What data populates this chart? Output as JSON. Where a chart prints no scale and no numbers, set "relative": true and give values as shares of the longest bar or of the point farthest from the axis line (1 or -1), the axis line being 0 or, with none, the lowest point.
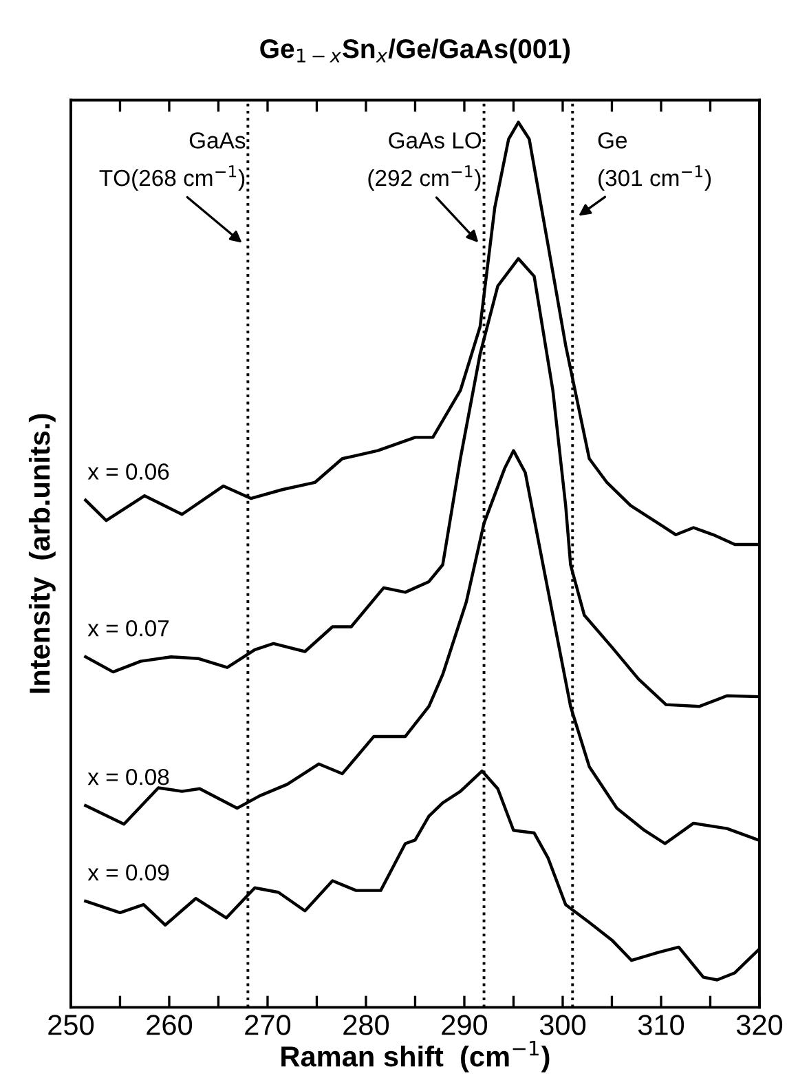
{
  "chart_data": {
    "type": "line",
    "title": "Ge$_{1−x}$Sn$_{x}$/Ge/GaAs(001)",
    "xlabel": "Raman shift  (cm$^{−1}$)",
    "ylabel": "Intensity  (arb.units.)",
    "relative": true,
    "tick_labels": "x",
    "grid": false,
    "legend": false,
    "marker": "none",
    "line_style": "solid",
    "xlim": [
      250,
      320
    ],
    "xticks": [
      250,
      {
        "value": 255,
        "label": null
      },
      260,
      {
        "value": 265,
        "label": null
      },
      270,
      {
        "value": 275,
        "label": null
      },
      280,
      {
        "value": 285,
        "label": null
      },
      290,
      {
        "value": 295,
        "label": null
      },
      300,
      {
        "value": 305,
        "label": null
      },
      310,
      {
        "value": 315,
        "label": null
      },
      320
    ],
    "ref_lines": [
      {
        "axis": "x",
        "value": 268,
        "label": "GaAs\nTO(268 cm$^{−1}$)",
        "color": "#000000",
        "line_style": "dotted"
      },
      {
        "axis": "x",
        "value": 292,
        "label": "GaAs LO\n(292 cm$^{−1}$)",
        "color": "#000000",
        "line_style": "dotted"
      },
      {
        "axis": "x",
        "value": 301,
        "label": "Ge\n(301 cm$^{−1}$)",
        "color": "#000000",
        "line_style": "dotted"
      }
    ],
    "series": [
      {
        "name": "x = 0.06",
        "color": "#000000",
        "x": [
          251.5,
          253.6,
          257.5,
          261.3,
          265.5,
          268.3,
          271.5,
          274.8,
          277.6,
          281.2,
          285,
          286.8,
          289.6,
          291.6,
          293.1,
          294.5,
          295.5,
          296.6,
          298.5,
          300.3,
          302.7,
          304.5,
          306.9,
          309.7,
          311.5,
          313.3,
          315.3,
          317.5,
          319.9
        ],
        "values": [
          0.573,
          0.55,
          0.578,
          0.557,
          0.589,
          0.575,
          0.585,
          0.593,
          0.62,
          0.629,
          0.644,
          0.644,
          0.697,
          0.769,
          0.904,
          0.981,
          1.0,
          0.981,
          0.862,
          0.748,
          0.62,
          0.593,
          0.567,
          0.547,
          0.534,
          0.542,
          0.534,
          0.523,
          0.523
        ]
      },
      {
        "name": "x = 0.07",
        "color": "#000000",
        "x": [
          251.5,
          254.3,
          257.1,
          260.2,
          263,
          265.9,
          268.7,
          270.6,
          273.8,
          276.6,
          278.5,
          281.8,
          284,
          286.4,
          287.8,
          289.6,
          291.6,
          293.4,
          295.5,
          297.1,
          299,
          300.3,
          300.8,
          302.2,
          305,
          307.7,
          310.5,
          313.9,
          316.7,
          319.9
        ],
        "values": [
          0.396,
          0.379,
          0.391,
          0.396,
          0.394,
          0.384,
          0.404,
          0.411,
          0.402,
          0.43,
          0.43,
          0.474,
          0.469,
          0.481,
          0.5,
          0.62,
          0.738,
          0.815,
          0.846,
          0.826,
          0.697,
          0.567,
          0.5,
          0.443,
          0.407,
          0.371,
          0.342,
          0.34,
          0.352,
          0.351
        ]
      },
      {
        "name": "x = 0.08",
        "color": "#000000",
        "x": [
          251.5,
          255.4,
          258.9,
          261.3,
          263.1,
          266.9,
          269.2,
          272,
          275.2,
          277.6,
          280.8,
          284,
          286.4,
          287.8,
          290.2,
          292,
          294.1,
          295,
          296.2,
          298,
          299,
          300.8,
          302.7,
          305.5,
          308.3,
          310.4,
          313.3,
          316.7,
          319.9
        ],
        "values": [
          0.228,
          0.207,
          0.248,
          0.244,
          0.247,
          0.225,
          0.239,
          0.252,
          0.275,
          0.264,
          0.306,
          0.306,
          0.34,
          0.376,
          0.458,
          0.547,
          0.609,
          0.629,
          0.604,
          0.5,
          0.443,
          0.34,
          0.272,
          0.225,
          0.2,
          0.185,
          0.208,
          0.202,
          0.189
        ]
      },
      {
        "name": "x = 0.09",
        "color": "#000000",
        "x": [
          251.5,
          255,
          257.4,
          259.6,
          262.7,
          265.8,
          268.7,
          271.1,
          273.8,
          276.6,
          279,
          281.5,
          284,
          285,
          286.4,
          287.8,
          289.6,
          291.8,
          293.4,
          295,
          297.1,
          298.5,
          300.3,
          302.7,
          305,
          307,
          309.7,
          311.8,
          314.3,
          315.7,
          317.5,
          319.9
        ],
        "values": [
          0.12,
          0.107,
          0.116,
          0.093,
          0.123,
          0.101,
          0.135,
          0.13,
          0.109,
          0.143,
          0.132,
          0.132,
          0.185,
          0.189,
          0.216,
          0.231,
          0.244,
          0.267,
          0.247,
          0.2,
          0.197,
          0.169,
          0.116,
          0.096,
          0.076,
          0.053,
          0.062,
          0.068,
          0.034,
          0.031,
          0.039,
          0.065
        ]
      }
    ]
  }
}
